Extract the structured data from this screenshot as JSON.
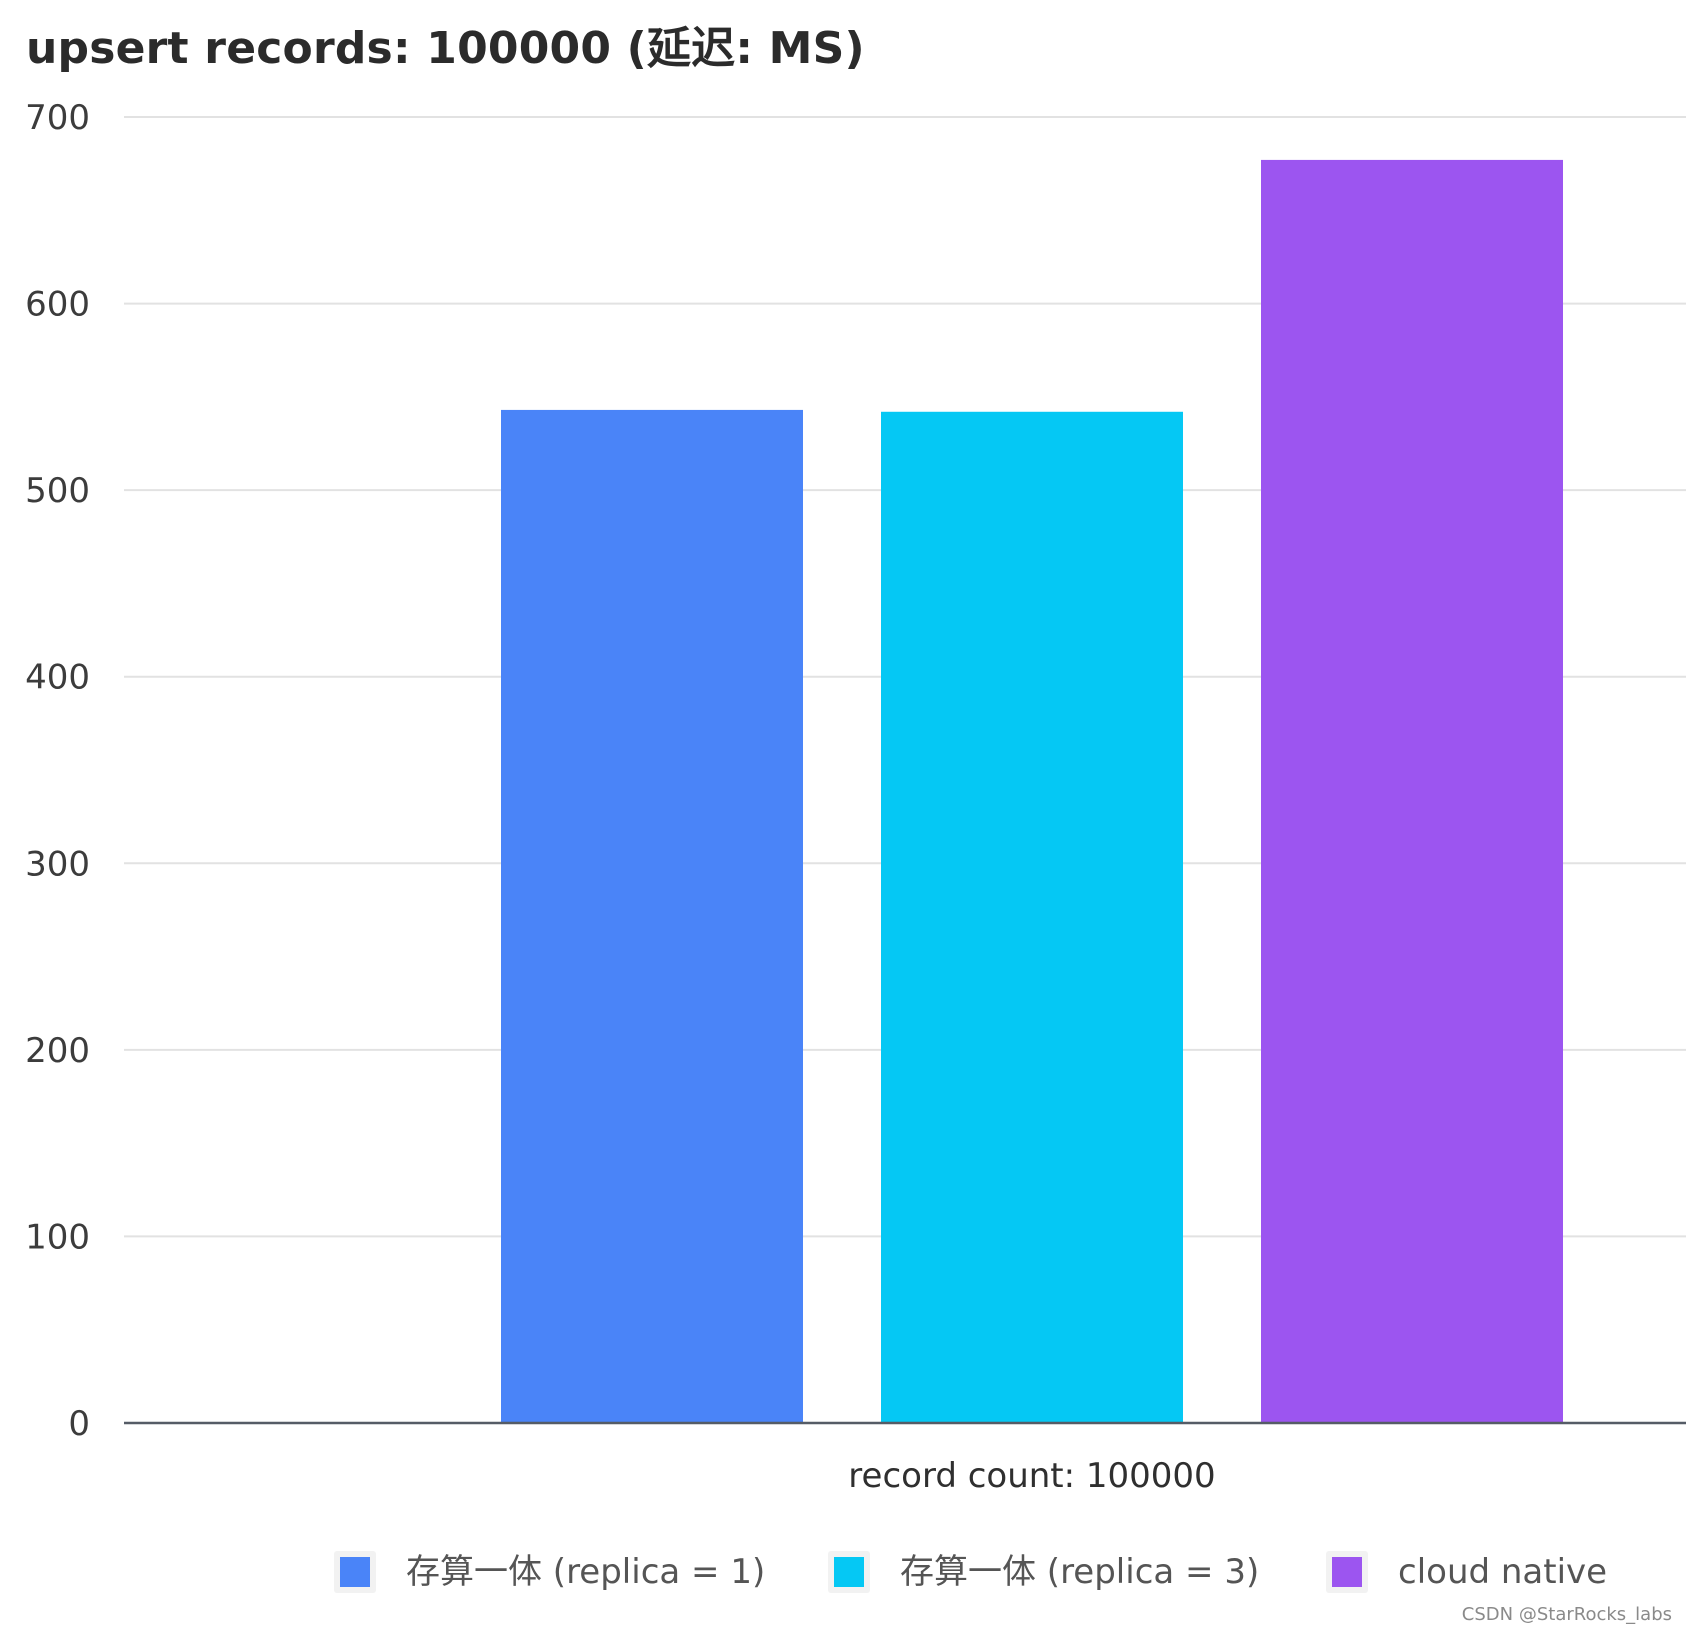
{
  "chart_data": {
    "type": "bar",
    "title": "upsert records: 100000 (延迟: MS)",
    "categories": [
      "record count: 100000"
    ],
    "series": [
      {
        "name": "存算一体 (replica = 1)",
        "values": [
          543
        ],
        "color": "#4a84f8"
      },
      {
        "name": "存算一体 (replica = 3)",
        "values": [
          542
        ],
        "color": "#05c8f4"
      },
      {
        "name": "cloud native",
        "values": [
          677
        ],
        "color": "#9c55f0"
      }
    ],
    "xlabel": "",
    "ylabel": "",
    "ylim": [
      0,
      700
    ],
    "yticks": [
      "0",
      "100",
      "200",
      "300",
      "400",
      "500",
      "600",
      "700"
    ],
    "grid": true,
    "legend_position": "bottom"
  },
  "watermark": "CSDN @StarRocks_labs"
}
